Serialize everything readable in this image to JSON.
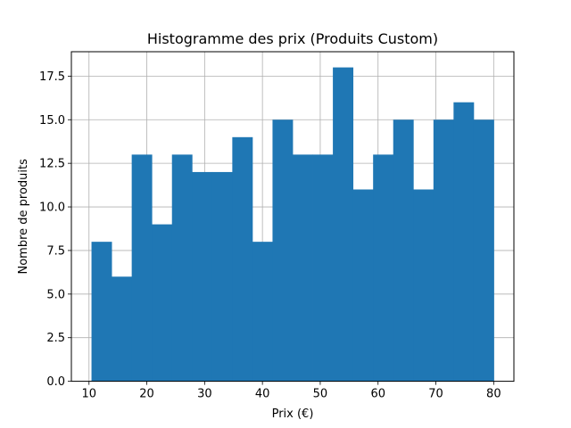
{
  "chart_data": {
    "type": "bar",
    "title": "Histogramme des prix (Produits Custom)",
    "xlabel": "Prix (€)",
    "ylabel": "Nombre de produits",
    "xlim": [
      6.95,
      83.5
    ],
    "ylim": [
      0,
      18.9
    ],
    "xticks": [
      10,
      20,
      30,
      40,
      50,
      60,
      70,
      80
    ],
    "yticks": [
      0.0,
      2.5,
      5.0,
      7.5,
      10.0,
      12.5,
      15.0,
      17.5
    ],
    "ytick_labels": [
      "0.0",
      "2.5",
      "5.0",
      "7.5",
      "10.0",
      "12.5",
      "15.0",
      "17.5"
    ],
    "xtick_labels": [
      "10",
      "20",
      "30",
      "40",
      "50",
      "60",
      "70",
      "80"
    ],
    "grid": true,
    "bar_color": "#1f77b4",
    "bins": {
      "start": 10.43,
      "end": 80.02,
      "counts": [
        8,
        6,
        13,
        9,
        13,
        12,
        12,
        14,
        8,
        15,
        13,
        13,
        18,
        11,
        13,
        15,
        11,
        15,
        16,
        15
      ]
    }
  }
}
